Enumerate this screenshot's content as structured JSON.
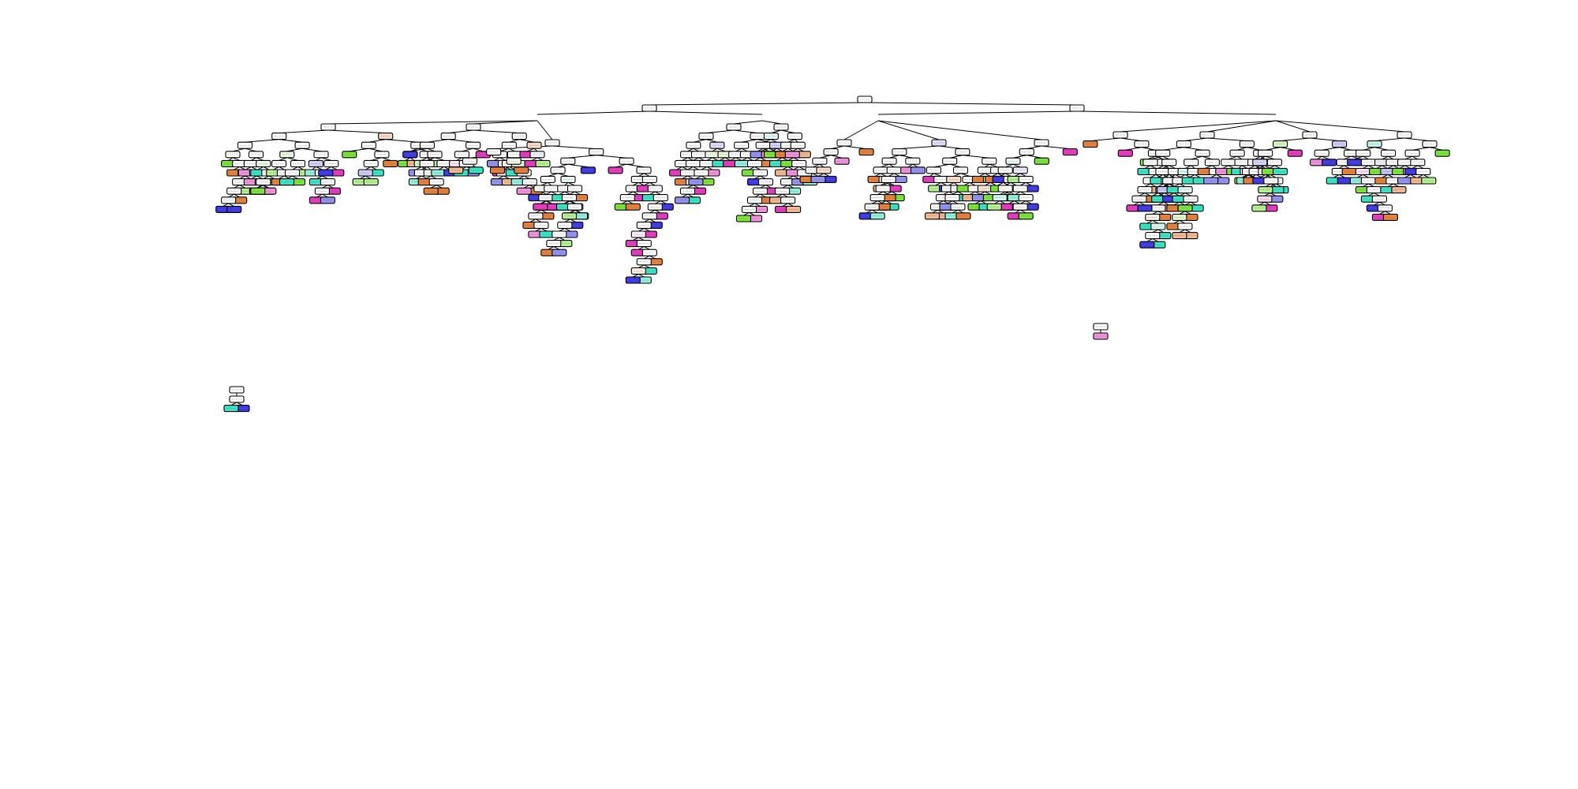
{
  "figure": {
    "type": "decision-tree-plot",
    "title": "",
    "node_text_legible": false,
    "node_style": "rounded rectangle, black outline, class-colored fill",
    "edge_style": "thin black straight lines",
    "class_colors": {
      "class_0": "#e58139",
      "class_1": "#7be539",
      "class_2": "#39e5c5",
      "class_3": "#3c39e5",
      "class_4": "#e539c0",
      "impure": "#ffffff"
    },
    "background": "#ffffff"
  }
}
